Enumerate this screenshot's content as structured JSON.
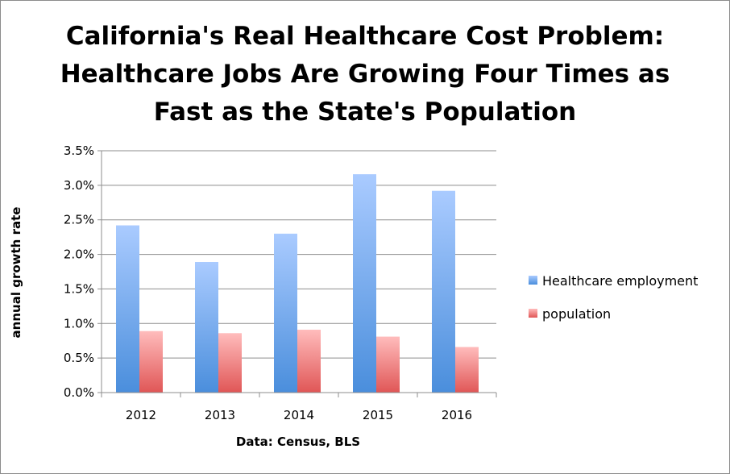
{
  "chart_data": {
    "type": "bar",
    "title_lines": [
      "California's Real Healthcare Cost Problem:",
      "Healthcare Jobs Are Growing Four Times as",
      "Fast as the State's Population"
    ],
    "xlabel": "Data: Census, BLS",
    "ylabel": "annual growth rate",
    "categories": [
      "2012",
      "2013",
      "2014",
      "2015",
      "2016"
    ],
    "series": [
      {
        "name": "Healthcare employment",
        "values": [
          2.42,
          1.89,
          2.3,
          3.16,
          2.92
        ],
        "color_top": "#aacbff",
        "color_bottom": "#4a8edc"
      },
      {
        "name": "population",
        "values": [
          0.89,
          0.86,
          0.91,
          0.81,
          0.66
        ],
        "color_top": "#ffbcbc",
        "color_bottom": "#e05656"
      }
    ],
    "ylim": [
      0,
      3.5
    ],
    "yticks": [
      0,
      0.5,
      1.0,
      1.5,
      2.0,
      2.5,
      3.0,
      3.5
    ],
    "ytick_labels": [
      "0.0%",
      "0.5%",
      "1.0%",
      "1.5%",
      "2.0%",
      "2.5%",
      "3.0%",
      "3.5%"
    ],
    "grid": true,
    "legend_position": "right"
  }
}
